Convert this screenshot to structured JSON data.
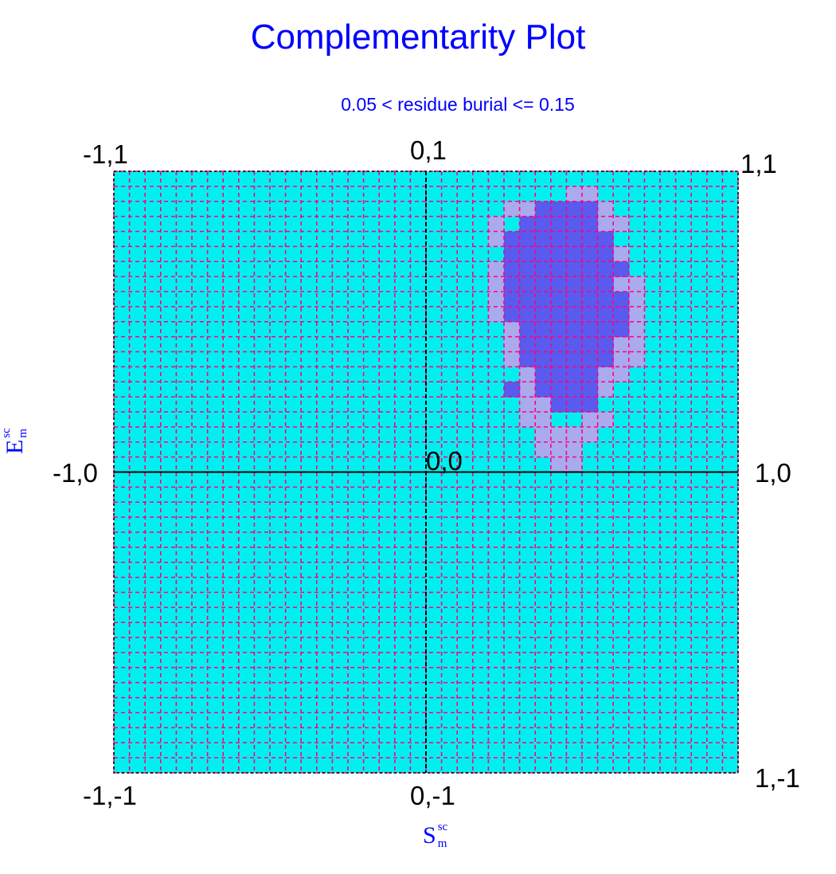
{
  "title": "Complementarity Plot",
  "subtitle": "0.05 < residue burial <= 0.15",
  "corner_labels": {
    "top_left": "-1,1",
    "top_center": "0,1",
    "top_right": "1,1",
    "mid_left": "-1,0",
    "center": "0,0",
    "mid_right": "1,0",
    "bottom_left": "-1,-1",
    "bottom_center": "0,-1",
    "bottom_right": "1,-1"
  },
  "axes": {
    "x_main": "S",
    "x_sup": "sc",
    "x_sub": "m",
    "y_main": "E",
    "y_sup": "sc",
    "y_sub": "m"
  },
  "colors": {
    "background_region": "#00f0f0",
    "grid_dash": "#ff0080",
    "axis_line": "#000000",
    "light_region": "#aaaaee",
    "dark_region": "#5a5aee"
  },
  "chart_data": {
    "type": "heatmap",
    "title": "Complementarity Plot",
    "subtitle": "0.05 < residue burial <= 0.15",
    "xlabel": "S_m^sc",
    "ylabel": "E_m^sc",
    "xlim": [
      -1,
      1
    ],
    "ylim": [
      -1,
      1
    ],
    "grid": true,
    "cell_size": 0.05,
    "light_cells": [
      [
        0.45,
        0.9
      ],
      [
        0.5,
        0.9
      ],
      [
        0.25,
        0.85
      ],
      [
        0.3,
        0.85
      ],
      [
        0.55,
        0.85
      ],
      [
        0.2,
        0.8
      ],
      [
        0.55,
        0.8
      ],
      [
        0.6,
        0.8
      ],
      [
        0.2,
        0.75
      ],
      [
        0.6,
        0.7
      ],
      [
        0.2,
        0.65
      ],
      [
        0.2,
        0.6
      ],
      [
        0.6,
        0.6
      ],
      [
        0.65,
        0.6
      ],
      [
        0.2,
        0.55
      ],
      [
        0.65,
        0.55
      ],
      [
        0.2,
        0.5
      ],
      [
        0.65,
        0.5
      ],
      [
        0.25,
        0.45
      ],
      [
        0.65,
        0.45
      ],
      [
        0.25,
        0.4
      ],
      [
        0.6,
        0.4
      ],
      [
        0.65,
        0.4
      ],
      [
        0.25,
        0.35
      ],
      [
        0.6,
        0.35
      ],
      [
        0.65,
        0.35
      ],
      [
        0.3,
        0.3
      ],
      [
        0.55,
        0.3
      ],
      [
        0.6,
        0.3
      ],
      [
        0.25,
        0.25
      ],
      [
        0.3,
        0.25
      ],
      [
        0.55,
        0.25
      ],
      [
        0.3,
        0.2
      ],
      [
        0.35,
        0.2
      ],
      [
        0.3,
        0.15
      ],
      [
        0.35,
        0.15
      ],
      [
        0.5,
        0.15
      ],
      [
        0.55,
        0.15
      ],
      [
        0.35,
        0.1
      ],
      [
        0.4,
        0.1
      ],
      [
        0.45,
        0.1
      ],
      [
        0.5,
        0.1
      ],
      [
        0.35,
        0.05
      ],
      [
        0.4,
        0.05
      ],
      [
        0.45,
        0.05
      ],
      [
        0.4,
        0.0
      ],
      [
        0.45,
        0.0
      ]
    ],
    "dark_cells": [
      [
        0.35,
        0.85
      ],
      [
        0.4,
        0.85
      ],
      [
        0.45,
        0.85
      ],
      [
        0.5,
        0.85
      ],
      [
        0.3,
        0.8
      ],
      [
        0.35,
        0.8
      ],
      [
        0.4,
        0.8
      ],
      [
        0.45,
        0.8
      ],
      [
        0.5,
        0.8
      ],
      [
        0.25,
        0.75
      ],
      [
        0.3,
        0.75
      ],
      [
        0.35,
        0.75
      ],
      [
        0.4,
        0.75
      ],
      [
        0.45,
        0.75
      ],
      [
        0.5,
        0.75
      ],
      [
        0.55,
        0.75
      ],
      [
        0.25,
        0.7
      ],
      [
        0.3,
        0.7
      ],
      [
        0.35,
        0.7
      ],
      [
        0.4,
        0.7
      ],
      [
        0.45,
        0.7
      ],
      [
        0.5,
        0.7
      ],
      [
        0.55,
        0.7
      ],
      [
        0.25,
        0.65
      ],
      [
        0.3,
        0.65
      ],
      [
        0.35,
        0.65
      ],
      [
        0.4,
        0.65
      ],
      [
        0.45,
        0.65
      ],
      [
        0.5,
        0.65
      ],
      [
        0.55,
        0.65
      ],
      [
        0.6,
        0.65
      ],
      [
        0.25,
        0.6
      ],
      [
        0.3,
        0.6
      ],
      [
        0.35,
        0.6
      ],
      [
        0.4,
        0.6
      ],
      [
        0.45,
        0.6
      ],
      [
        0.5,
        0.6
      ],
      [
        0.55,
        0.6
      ],
      [
        0.25,
        0.55
      ],
      [
        0.3,
        0.55
      ],
      [
        0.35,
        0.55
      ],
      [
        0.4,
        0.55
      ],
      [
        0.45,
        0.55
      ],
      [
        0.5,
        0.55
      ],
      [
        0.55,
        0.55
      ],
      [
        0.6,
        0.55
      ],
      [
        0.25,
        0.5
      ],
      [
        0.3,
        0.5
      ],
      [
        0.35,
        0.5
      ],
      [
        0.4,
        0.5
      ],
      [
        0.45,
        0.5
      ],
      [
        0.5,
        0.5
      ],
      [
        0.55,
        0.5
      ],
      [
        0.6,
        0.5
      ],
      [
        0.3,
        0.45
      ],
      [
        0.35,
        0.45
      ],
      [
        0.4,
        0.45
      ],
      [
        0.45,
        0.45
      ],
      [
        0.5,
        0.45
      ],
      [
        0.55,
        0.45
      ],
      [
        0.6,
        0.45
      ],
      [
        0.3,
        0.4
      ],
      [
        0.35,
        0.4
      ],
      [
        0.4,
        0.4
      ],
      [
        0.45,
        0.4
      ],
      [
        0.5,
        0.4
      ],
      [
        0.55,
        0.4
      ],
      [
        0.3,
        0.35
      ],
      [
        0.35,
        0.35
      ],
      [
        0.4,
        0.35
      ],
      [
        0.45,
        0.35
      ],
      [
        0.5,
        0.35
      ],
      [
        0.55,
        0.35
      ],
      [
        0.35,
        0.3
      ],
      [
        0.4,
        0.3
      ],
      [
        0.45,
        0.3
      ],
      [
        0.5,
        0.3
      ],
      [
        0.25,
        0.25
      ],
      [
        0.35,
        0.25
      ],
      [
        0.4,
        0.25
      ],
      [
        0.45,
        0.25
      ],
      [
        0.5,
        0.25
      ],
      [
        0.4,
        0.2
      ],
      [
        0.45,
        0.2
      ],
      [
        0.5,
        0.2
      ]
    ]
  }
}
